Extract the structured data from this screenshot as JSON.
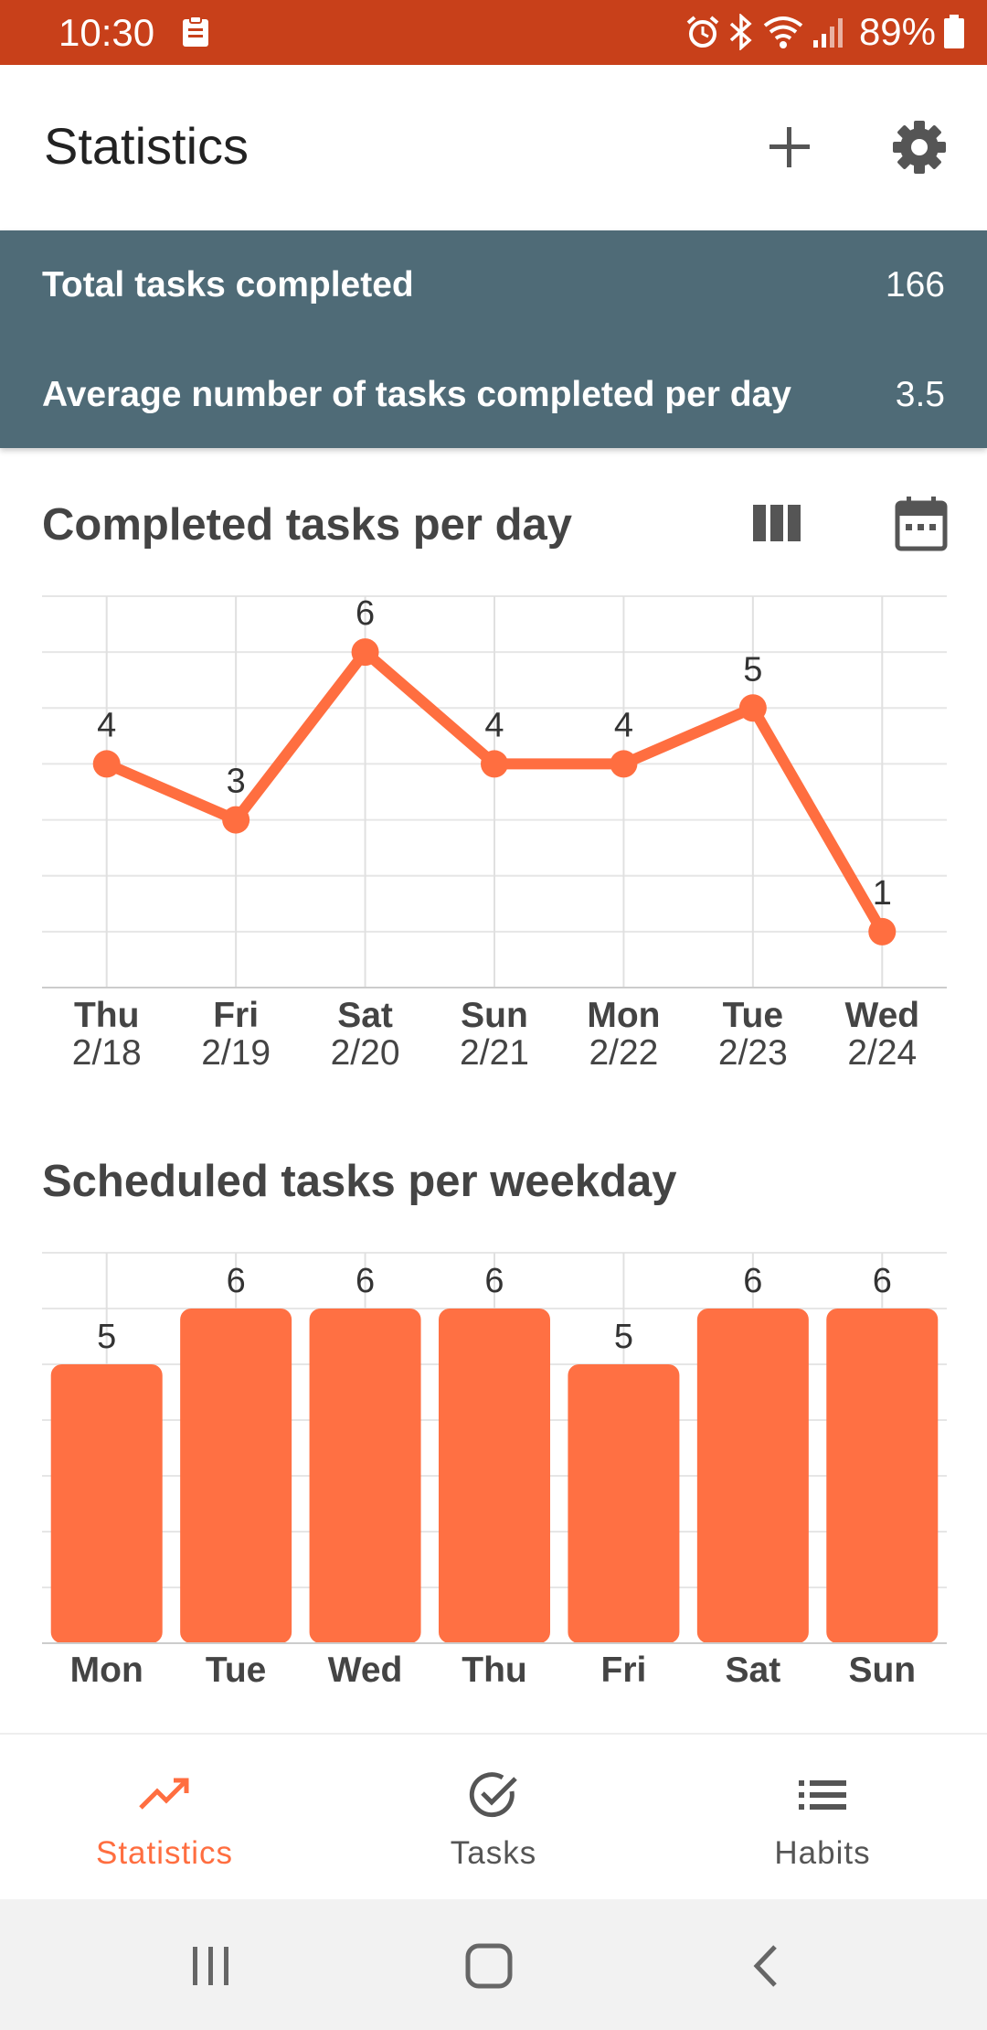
{
  "status_bar": {
    "time": "10:30",
    "battery": "89%",
    "icons": [
      "clipboard-icon",
      "alarm-icon",
      "bluetooth-icon",
      "wifi-icon",
      "signal-icon",
      "battery-icon"
    ],
    "color": "#c8401a"
  },
  "app_bar": {
    "title": "Statistics",
    "actions": [
      "add-icon",
      "gear-icon"
    ]
  },
  "summary": {
    "total_label": "Total tasks completed",
    "total_value": "166",
    "average_label": "Average number of tasks completed per day",
    "average_value": "3.5",
    "background": "#4f6b77"
  },
  "completed_section": {
    "title": "Completed tasks per day",
    "actions": [
      "bar-chart-mode-icon",
      "calendar-icon"
    ]
  },
  "scheduled_section": {
    "title": "Scheduled tasks per weekday"
  },
  "chart_data": [
    {
      "type": "line",
      "title": "Completed tasks per day",
      "categories": [
        "Thu",
        "Fri",
        "Sat",
        "Sun",
        "Mon",
        "Tue",
        "Wed"
      ],
      "dates": [
        "2/18",
        "2/19",
        "2/20",
        "2/21",
        "2/22",
        "2/23",
        "2/24"
      ],
      "values": [
        4,
        3,
        6,
        4,
        4,
        5,
        1
      ],
      "ylim": [
        0,
        7
      ],
      "grid": true,
      "data_labels": true,
      "color": "#ff6e40"
    },
    {
      "type": "bar",
      "title": "Scheduled tasks per weekday",
      "categories": [
        "Mon",
        "Tue",
        "Wed",
        "Thu",
        "Fri",
        "Sat",
        "Sun"
      ],
      "values": [
        5,
        6,
        6,
        6,
        5,
        6,
        6
      ],
      "ylim": [
        0,
        7
      ],
      "grid": true,
      "data_labels": true,
      "color": "#ff7043"
    }
  ],
  "bottom_nav": {
    "items": [
      {
        "label": "Statistics",
        "icon": "trending-up-icon",
        "active": true
      },
      {
        "label": "Tasks",
        "icon": "check-circle-icon",
        "active": false
      },
      {
        "label": "Habits",
        "icon": "list-icon",
        "active": false
      }
    ],
    "accent": "#ff6e40"
  },
  "system_nav": {
    "buttons": [
      "recent-apps-icon",
      "home-icon",
      "back-icon"
    ]
  }
}
